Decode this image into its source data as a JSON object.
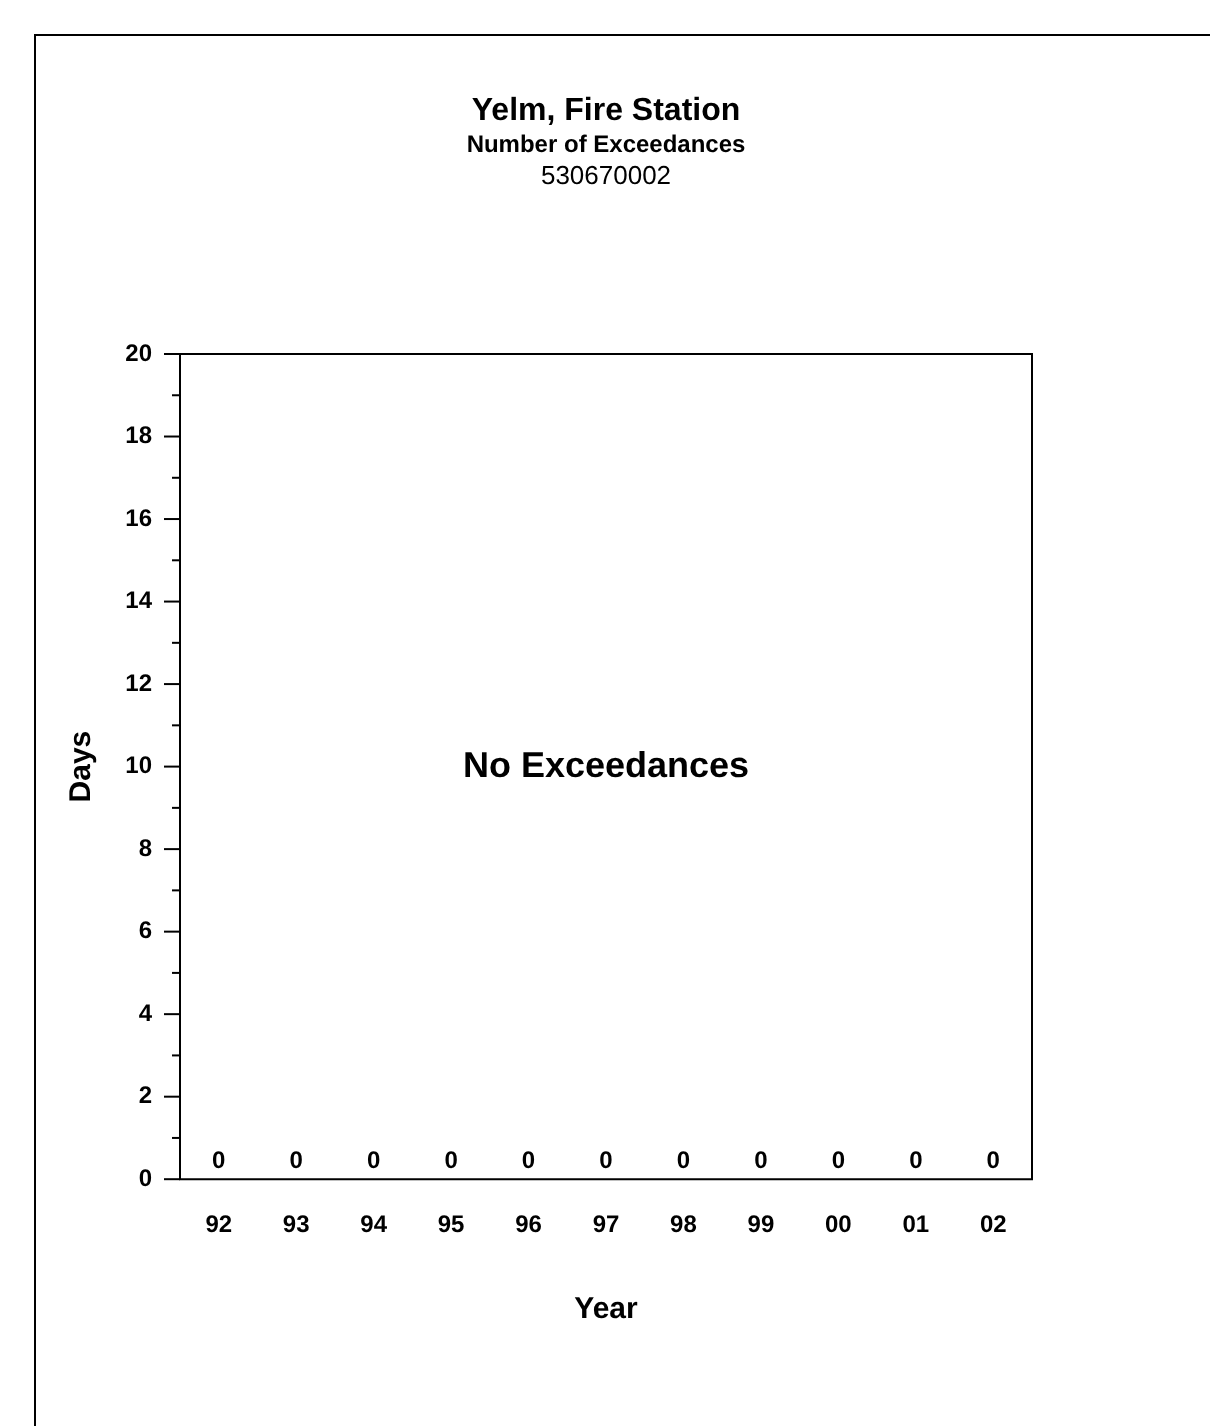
{
  "chart_data": {
    "type": "bar",
    "title": "Yelm, Fire Station",
    "subtitle": "Number of Exceedances",
    "xlabel": "Year",
    "ylabel": "Days",
    "annotations": [
      "530670002",
      "No Exceedances"
    ],
    "categories": [
      "92",
      "93",
      "94",
      "95",
      "96",
      "97",
      "98",
      "99",
      "00",
      "01",
      "02"
    ],
    "values": [
      0,
      0,
      0,
      0,
      0,
      0,
      0,
      0,
      0,
      0,
      0
    ],
    "data_labels": true,
    "ylim": [
      0,
      20
    ],
    "yticks": [
      0,
      {
        "value": 1,
        "label": null
      },
      2,
      {
        "value": 3,
        "label": null
      },
      4,
      {
        "value": 5,
        "label": null
      },
      6,
      {
        "value": 7,
        "label": null
      },
      8,
      {
        "value": 9,
        "label": null
      },
      10,
      {
        "value": 11,
        "label": null
      },
      12,
      {
        "value": 13,
        "label": null
      },
      14,
      {
        "value": 15,
        "label": null
      },
      16,
      {
        "value": 17,
        "label": null
      },
      18,
      {
        "value": 19,
        "label": null
      },
      20
    ],
    "grid": false,
    "legend": false
  }
}
